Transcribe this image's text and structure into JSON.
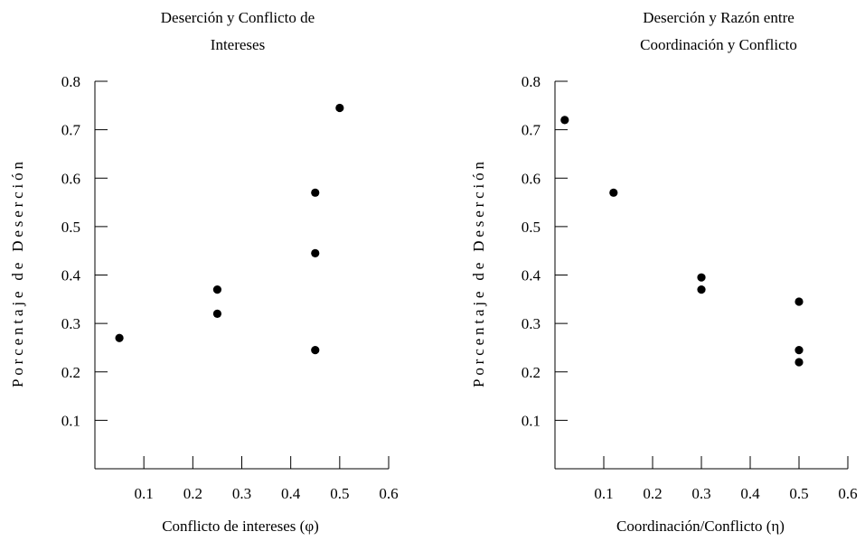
{
  "chart_data": [
    {
      "type": "scatter",
      "title_lines": [
        "Deserción y Conflicto de",
        "Intereses"
      ],
      "xlabel": "Conflicto de intereses (φ)",
      "ylabel": "Porcentaje de Deserción",
      "xlim": [
        0,
        0.6
      ],
      "ylim": [
        0,
        0.8
      ],
      "xticks": [
        0.1,
        0.2,
        0.3,
        0.4,
        0.5,
        0.6
      ],
      "yticks": [
        0.1,
        0.2,
        0.3,
        0.4,
        0.5,
        0.6,
        0.7,
        0.8
      ],
      "grid": false,
      "marker_color": "#000000",
      "x": [
        0.05,
        0.25,
        0.25,
        0.45,
        0.45,
        0.45,
        0.5
      ],
      "y": [
        0.27,
        0.32,
        0.37,
        0.245,
        0.445,
        0.57,
        0.745
      ]
    },
    {
      "type": "scatter",
      "title_lines": [
        "Deserción y Razón entre",
        "Coordinación y Conflicto"
      ],
      "xlabel": "Coordinación/Conflicto (η)",
      "ylabel": "Porcentaje de Deserción",
      "xlim": [
        0,
        0.6
      ],
      "ylim": [
        0,
        0.8
      ],
      "xticks": [
        0.1,
        0.2,
        0.3,
        0.4,
        0.5,
        0.6
      ],
      "yticks": [
        0.1,
        0.2,
        0.3,
        0.4,
        0.5,
        0.6,
        0.7,
        0.8
      ],
      "grid": false,
      "marker_color": "#000000",
      "x": [
        0.02,
        0.12,
        0.3,
        0.3,
        0.5,
        0.5,
        0.5
      ],
      "y": [
        0.72,
        0.57,
        0.37,
        0.395,
        0.22,
        0.245,
        0.345
      ]
    }
  ]
}
